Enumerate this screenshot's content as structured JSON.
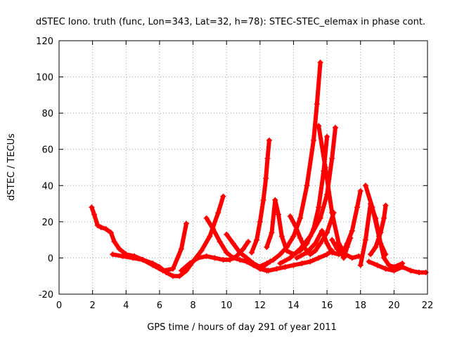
{
  "chart_data": {
    "type": "scatter",
    "title": "dSTEC Iono. truth (func, Lon=343, Lat=32, h=78): STEC-STEC_elemax in phase cont.",
    "xlabel": "GPS time / hours of day 291 of year 2011",
    "ylabel": "dSTEC  / TECUs",
    "xlim": [
      0,
      22
    ],
    "ylim": [
      -20,
      120
    ],
    "xticks": [
      "0",
      "2",
      "4",
      "6",
      "8",
      "10",
      "12",
      "14",
      "16",
      "18",
      "20",
      "22"
    ],
    "yticks": [
      "-20",
      "0",
      "20",
      "40",
      "60",
      "80",
      "100",
      "120"
    ],
    "grid": true,
    "marker": "+",
    "color": "#ff0000",
    "series": [
      {
        "x": [
          1.95,
          2.1,
          2.3,
          2.5,
          2.8,
          3.1,
          3.3,
          3.6,
          4.0,
          4.5,
          5.0,
          5.6,
          6.2,
          6.8,
          7.3,
          7.6
        ],
        "y": [
          28,
          24,
          18,
          17,
          16,
          14,
          9,
          5,
          2,
          1,
          -1,
          -4,
          -7,
          -6,
          5,
          19
        ]
      },
      {
        "x": [
          3.2,
          3.8,
          4.4,
          5.0,
          5.6,
          6.0,
          6.4,
          6.8,
          7.2,
          7.6,
          8.0,
          8.5,
          9.0,
          9.5,
          9.8
        ],
        "y": [
          2,
          1,
          0,
          -1,
          -3,
          -5,
          -8,
          -10,
          -10,
          -7,
          -2,
          4,
          12,
          25,
          34
        ]
      },
      {
        "x": [
          7.3,
          7.8,
          8.3,
          8.8,
          9.3,
          9.8,
          10.2,
          10.6,
          11.0,
          11.3
        ],
        "y": [
          -7,
          -3,
          0,
          1,
          0,
          -1,
          -1,
          1,
          5,
          9
        ]
      },
      {
        "x": [
          8.8,
          9.2,
          9.6,
          10.0,
          10.4,
          10.8,
          11.2,
          11.6,
          12.0,
          12.4
        ],
        "y": [
          22,
          16,
          9,
          3,
          0,
          -1,
          -2,
          -4,
          -6,
          -7
        ]
      },
      {
        "x": [
          10.0,
          10.4,
          10.8,
          11.2,
          11.6,
          12.0,
          12.3,
          12.6
        ],
        "y": [
          13,
          8,
          3,
          0,
          -3,
          -5,
          -4,
          -2
        ]
      },
      {
        "x": [
          11.5,
          11.8,
          12.0,
          12.2,
          12.35,
          12.45,
          12.55
        ],
        "y": [
          3,
          10,
          20,
          32,
          44,
          55,
          65
        ]
      },
      {
        "x": [
          12.0,
          12.5,
          13.0,
          13.5,
          14.0,
          14.5,
          15.0,
          15.5,
          16.0,
          16.3
        ],
        "y": [
          -6,
          -7,
          -6,
          -5,
          -4,
          -3,
          -2,
          0,
          2,
          4
        ]
      },
      {
        "x": [
          11.9,
          12.4,
          12.8,
          13.2,
          13.6,
          14.0,
          14.4,
          14.8,
          15.2,
          15.4,
          15.6
        ],
        "y": [
          -5,
          -3,
          -1,
          2,
          6,
          12,
          22,
          40,
          65,
          85,
          108
        ]
      },
      {
        "x": [
          12.4,
          12.7,
          12.9,
          13.1,
          13.3,
          13.6,
          14.0,
          14.4,
          14.8,
          15.2,
          15.5,
          15.8,
          16.0
        ],
        "y": [
          6,
          14,
          32,
          24,
          12,
          4,
          2,
          4,
          8,
          16,
          28,
          48,
          67
        ]
      },
      {
        "x": [
          13.8,
          14.1,
          14.4,
          14.7,
          15.0,
          15.3,
          15.6,
          16.0,
          16.4
        ],
        "y": [
          23,
          18,
          11,
          5,
          2,
          4,
          8,
          14,
          25
        ]
      },
      {
        "x": [
          13.2,
          13.8,
          14.4,
          15.0,
          15.6,
          16.0,
          16.3,
          16.5
        ],
        "y": [
          -3,
          0,
          5,
          12,
          22,
          35,
          55,
          72
        ]
      },
      {
        "x": [
          14.2,
          14.8,
          15.3,
          15.7,
          16.0,
          16.3,
          16.7,
          17.0
        ],
        "y": [
          0,
          3,
          8,
          15,
          8,
          3,
          2,
          3
        ]
      },
      {
        "x": [
          15.5,
          15.9,
          16.3,
          16.7,
          17.1,
          17.5,
          17.9
        ],
        "y": [
          73,
          50,
          25,
          8,
          2,
          0,
          1
        ]
      },
      {
        "x": [
          16.3,
          16.6,
          16.9,
          17.2,
          17.5,
          17.8,
          18.0
        ],
        "y": [
          10,
          5,
          2,
          8,
          15,
          28,
          37
        ]
      },
      {
        "x": [
          16.6,
          16.8,
          17.0,
          17.2,
          17.4
        ],
        "y": [
          8,
          4,
          0,
          6,
          11
        ]
      },
      {
        "x": [
          18.0,
          18.3,
          18.6,
          18.9,
          19.2,
          19.5
        ],
        "y": [
          -4,
          10,
          30,
          22,
          8,
          2
        ]
      },
      {
        "x": [
          18.3,
          18.7,
          19.1,
          19.4,
          19.7,
          20.0,
          20.5
        ],
        "y": [
          40,
          28,
          12,
          0,
          -4,
          -5,
          -3
        ]
      },
      {
        "x": [
          18.6,
          18.9,
          19.2,
          19.4,
          19.5
        ],
        "y": [
          2,
          6,
          14,
          22,
          29
        ]
      },
      {
        "x": [
          18.5,
          19.0,
          19.5,
          20.0,
          20.5,
          21.0,
          21.5,
          21.9
        ],
        "y": [
          -2,
          -4,
          -6,
          -7,
          -5,
          -7,
          -8,
          -8
        ]
      }
    ]
  }
}
